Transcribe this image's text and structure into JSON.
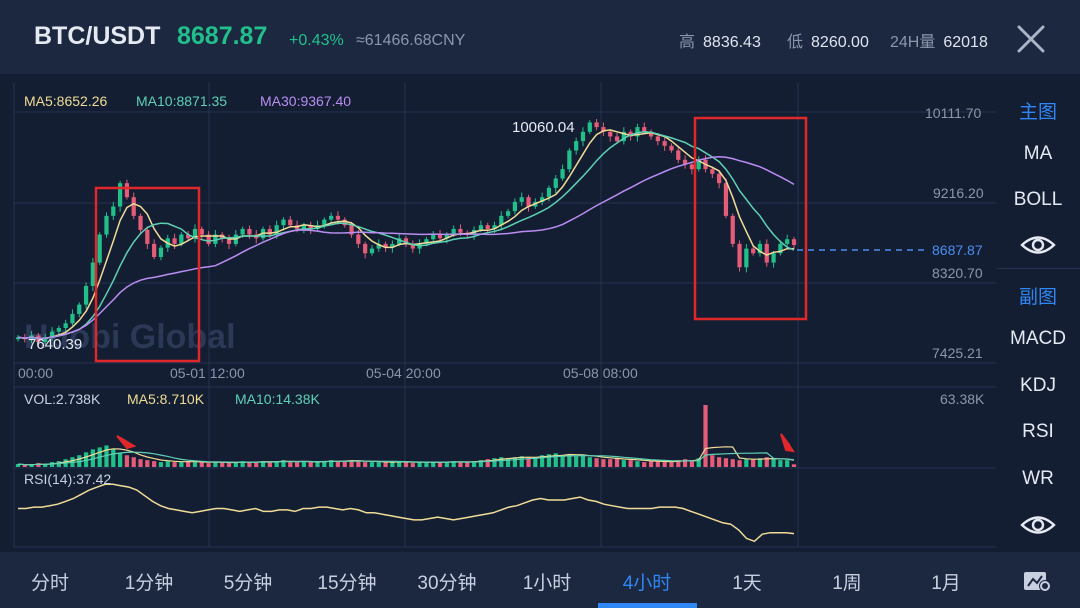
{
  "header": {
    "pair": "BTC/USDT",
    "price": "8687.87",
    "change": "+0.43%",
    "cny": "≈61466.68CNY",
    "high_label": "高",
    "high_value": "8836.43",
    "low_label": "低",
    "low_value": "8260.00",
    "vol_label": "24H量",
    "vol_value": "62018",
    "close_icon": "close-icon"
  },
  "main_chart": {
    "ma5": "MA5:8652.26",
    "ma10": "MA10:8871.35",
    "ma30": "MA30:9367.40",
    "price_levels": [
      "10111.70",
      "9216.20",
      "8320.70",
      "7425.21"
    ],
    "current_price": "8687.87",
    "max_label": "10060.04",
    "min_label": "7640.39",
    "time_labels": [
      "00:00",
      "05-01 12:00",
      "05-04 20:00",
      "05-08 08:00"
    ],
    "watermark": "Huobi Global",
    "colors": {
      "up": "#21c08b",
      "down": "#e55c78",
      "ma5": "#f0dc96",
      "ma10": "#5ed1b5",
      "ma30": "#b98df2",
      "highlight": "#e0282a"
    }
  },
  "volume_panel": {
    "vol": "VOL:2.738K",
    "ma5": "MA5:8.710K",
    "ma10": "MA10:14.38K",
    "max": "63.38K"
  },
  "rsi_panel": {
    "label": "RSI(14):37.42"
  },
  "sidebar": {
    "main_title": "主图",
    "main_items": [
      "MA",
      "BOLL"
    ],
    "sub_title": "副图",
    "sub_items": [
      "MACD",
      "KDJ",
      "RSI",
      "WR"
    ],
    "eye_icon": "eye-icon"
  },
  "tabs": [
    "分时",
    "1分钟",
    "5分钟",
    "15分钟",
    "30分钟",
    "1小时",
    "4小时",
    "1天",
    "1周",
    "1月"
  ],
  "active_tab": "4小时",
  "settings_icon": "chart-settings-icon",
  "chart_data": {
    "type": "candlestick",
    "ylim": [
      7425.21,
      10111.7
    ],
    "close": [
      7700,
      7680,
      7720,
      7650,
      7700,
      7760,
      7800,
      7850,
      7950,
      8050,
      8250,
      8500,
      8800,
      9000,
      9100,
      9350,
      9200,
      9000,
      8850,
      8700,
      8560,
      8660,
      8760,
      8700,
      8800,
      8760,
      8860,
      8800,
      8700,
      8800,
      8760,
      8700,
      8800,
      8860,
      8800,
      8760,
      8860,
      8800,
      8900,
      8960,
      8900,
      8860,
      8900,
      8860,
      8900,
      8960,
      9000,
      8960,
      8900,
      8800,
      8700,
      8600,
      8650,
      8700,
      8660,
      8700,
      8760,
      8700,
      8650,
      8700,
      8750,
      8800,
      8760,
      8800,
      8860,
      8820,
      8800,
      8850,
      8900,
      8860,
      8900,
      9000,
      9050,
      9150,
      9200,
      9100,
      9150,
      9200,
      9300,
      9400,
      9500,
      9700,
      9800,
      9900,
      10000,
      9950,
      9900,
      9850,
      9800,
      9900,
      9850,
      9950,
      9900,
      9850,
      9800,
      9750,
      9700,
      9600,
      9550,
      9500,
      9600,
      9500,
      9450,
      9350,
      9000,
      8700,
      8450,
      8650,
      8600,
      8700,
      8500,
      8600,
      8700,
      8750,
      8687.87
    ],
    "volume": [
      3,
      2,
      2,
      4,
      3,
      5,
      6,
      8,
      10,
      12,
      15,
      18,
      20,
      22,
      18,
      14,
      12,
      10,
      8,
      7,
      6,
      5,
      6,
      5,
      5,
      6,
      5,
      5,
      4,
      5,
      5,
      4,
      5,
      6,
      5,
      5,
      6,
      5,
      6,
      7,
      5,
      5,
      6,
      5,
      5,
      6,
      7,
      6,
      6,
      7,
      6,
      5,
      5,
      5,
      5,
      5,
      6,
      5,
      4,
      5,
      5,
      5,
      5,
      5,
      6,
      5,
      5,
      6,
      7,
      8,
      9,
      10,
      9,
      10,
      11,
      10,
      9,
      12,
      13,
      14,
      12,
      13,
      11,
      12,
      10,
      9,
      8,
      8,
      9,
      7,
      7,
      6,
      5,
      6,
      6,
      5,
      5,
      7,
      8,
      7,
      9,
      63.38,
      12,
      10,
      9,
      8,
      7,
      8,
      8,
      9,
      10,
      8,
      7,
      7,
      2.738
    ],
    "rsi": [
      55,
      55,
      56,
      56,
      57,
      58,
      60,
      62,
      65,
      68,
      70,
      72,
      72,
      71,
      70,
      68,
      64,
      60,
      57,
      55,
      54,
      53,
      52,
      53,
      54,
      55,
      55,
      54,
      53,
      54,
      55,
      53,
      53,
      54,
      54,
      53,
      55,
      55,
      56,
      56,
      55,
      54,
      55,
      54,
      52,
      52,
      51,
      50,
      49,
      48,
      47,
      47,
      48,
      49,
      48,
      47,
      48,
      49,
      50,
      51,
      52,
      54,
      56,
      57,
      59,
      61,
      62,
      61,
      61,
      61,
      62,
      63,
      61,
      60,
      58,
      57,
      56,
      55,
      55,
      55,
      55,
      56,
      56,
      56,
      55,
      53,
      51,
      49,
      47,
      45,
      44,
      40,
      34,
      32,
      37,
      38,
      38,
      38,
      37.42
    ]
  }
}
